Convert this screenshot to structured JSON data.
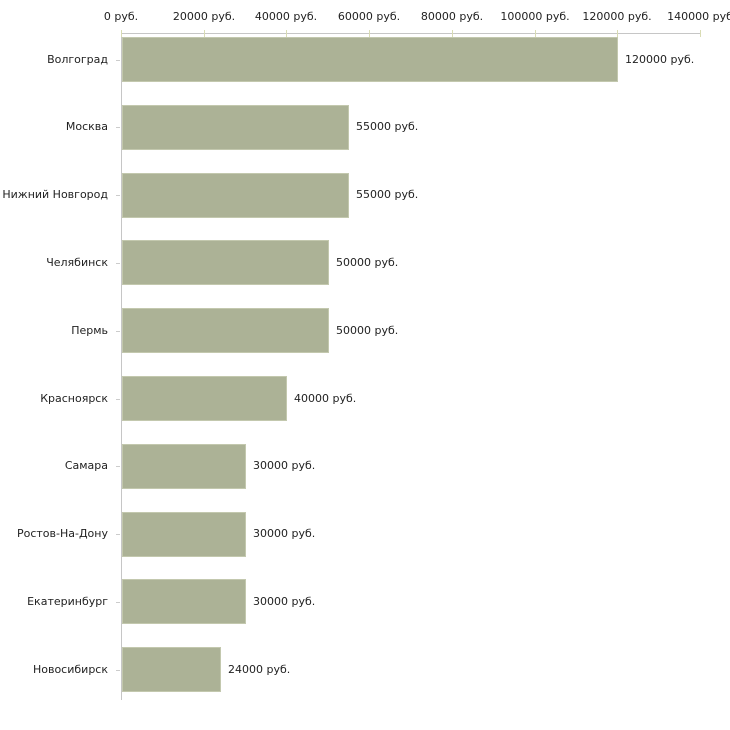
{
  "chart_data": {
    "type": "bar",
    "orientation": "horizontal",
    "title": "",
    "xlabel": "",
    "ylabel": "",
    "grid": false,
    "legend": false,
    "categories": [
      "Волгоград",
      "Москва",
      "Нижний Новгород",
      "Челябинск",
      "Пермь",
      "Красноярск",
      "Самара",
      "Ростов-На-Дону",
      "Екатеринбург",
      "Новосибирск"
    ],
    "values": [
      120000,
      55000,
      55000,
      50000,
      50000,
      40000,
      30000,
      30000,
      30000,
      24000
    ],
    "value_labels": [
      "120000 руб.",
      "55000 руб.",
      "55000 руб.",
      "50000 руб.",
      "50000 руб.",
      "40000 руб.",
      "30000 руб.",
      "30000 руб.",
      "30000 руб.",
      "24000 руб."
    ],
    "x_axis": {
      "position": "top",
      "min": 0,
      "max": 140000,
      "tick_values": [
        0,
        20000,
        40000,
        60000,
        80000,
        100000,
        120000,
        140000
      ],
      "tick_labels": [
        "0 руб.",
        "20000 руб.",
        "40000 руб.",
        "60000 руб.",
        "80000 руб.",
        "100000 руб.",
        "120000 руб.",
        "140000 руб"
      ]
    },
    "colors": {
      "bar_fill": "#acb296",
      "bar_edge": "#c3c8ae",
      "axis_line": "#c6c6c6",
      "axis_tick": "#d9dcb4",
      "text": "#222222",
      "background": "#ffffff"
    }
  }
}
